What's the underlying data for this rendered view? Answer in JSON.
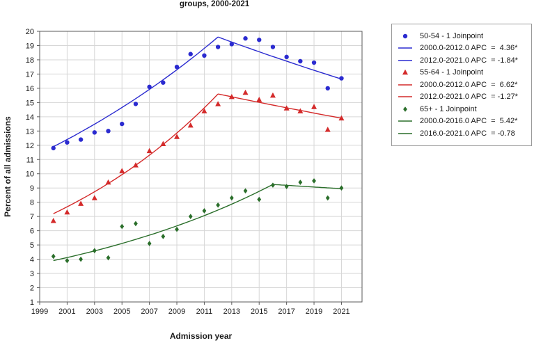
{
  "chart_data": {
    "type": "scatter",
    "title": "groups, 2000-2021",
    "xlabel": "Admission year",
    "ylabel": "Percent of all admissions",
    "xlim": [
      1999,
      2022.5
    ],
    "ylim": [
      1,
      20
    ],
    "x_ticks": [
      1999,
      2001,
      2003,
      2005,
      2007,
      2009,
      2011,
      2013,
      2015,
      2017,
      2019,
      2021
    ],
    "y_ticks": [
      1,
      2,
      3,
      4,
      5,
      6,
      7,
      8,
      9,
      10,
      11,
      12,
      13,
      14,
      15,
      16,
      17,
      18,
      19,
      20
    ],
    "grid": true,
    "legend_position": "top-right-outside",
    "colors": {
      "grid": "#d6d6d6",
      "frame": "#5a5a5a"
    },
    "years": [
      2000,
      2001,
      2002,
      2003,
      2004,
      2005,
      2006,
      2007,
      2008,
      2009,
      2010,
      2011,
      2012,
      2013,
      2014,
      2015,
      2016,
      2017,
      2018,
      2019,
      2020,
      2021
    ],
    "series": [
      {
        "name": "50-54 - 1 Joinpoint",
        "color": "#2b2bd0",
        "marker": "circle",
        "values": [
          11.8,
          12.2,
          12.4,
          12.9,
          13.0,
          13.5,
          14.9,
          16.1,
          16.4,
          17.5,
          18.4,
          18.3,
          18.9,
          19.1,
          19.5,
          19.4,
          18.9,
          18.2,
          17.9,
          17.8,
          16.0,
          16.7
        ],
        "trend_segments": [
          {
            "x0": 2000,
            "y0": 11.9,
            "x1": 2012,
            "y1": 19.6,
            "apc": "4.36*"
          },
          {
            "x0": 2012,
            "y0": 19.6,
            "x1": 2021,
            "y1": 16.65,
            "apc": "-1.84*"
          }
        ]
      },
      {
        "name": "55-64 - 1 Joinpoint",
        "color": "#d42a2a",
        "marker": "triangle",
        "values": [
          6.7,
          7.3,
          7.9,
          8.3,
          9.4,
          10.2,
          10.6,
          11.6,
          12.1,
          12.6,
          13.4,
          14.4,
          14.9,
          15.4,
          15.7,
          15.2,
          15.5,
          14.6,
          14.4,
          14.7,
          13.1,
          13.9
        ],
        "trend_segments": [
          {
            "x0": 2000,
            "y0": 7.2,
            "x1": 2012,
            "y1": 15.6,
            "apc": "6.62*"
          },
          {
            "x0": 2012,
            "y0": 15.6,
            "x1": 2021,
            "y1": 13.9,
            "apc": "-1.27*"
          }
        ]
      },
      {
        "name": "65+ - 1 Joinpoint",
        "color": "#2a6e2a",
        "marker": "diamond",
        "values": [
          4.2,
          3.9,
          4.0,
          4.6,
          4.1,
          6.3,
          6.5,
          5.1,
          5.6,
          6.1,
          7.0,
          7.4,
          7.8,
          8.3,
          8.8,
          8.2,
          9.2,
          9.1,
          9.4,
          9.5,
          8.3,
          9.0
        ],
        "trend_segments": [
          {
            "x0": 2000,
            "y0": 3.9,
            "x1": 2016,
            "y1": 9.25,
            "apc": "5.42*"
          },
          {
            "x0": 2016,
            "y0": 9.25,
            "x1": 2021,
            "y1": 8.95,
            "apc": "-0.78"
          }
        ]
      }
    ]
  },
  "legend": {
    "entries": [
      {
        "marker": "circle",
        "color": "#2b2bd0",
        "text": "50-54 - 1 Joinpoint"
      },
      {
        "marker": "line",
        "color": "#2b2bd0",
        "text": "2000.0-2012.0 APC  =  4.36*"
      },
      {
        "marker": "line",
        "color": "#2b2bd0",
        "text": "2012.0-2021.0 APC  = -1.84*"
      },
      {
        "marker": "triangle",
        "color": "#d42a2a",
        "text": "55-64 - 1 Joinpoint"
      },
      {
        "marker": "line",
        "color": "#d42a2a",
        "text": "2000.0-2012.0 APC  =  6.62*"
      },
      {
        "marker": "line",
        "color": "#d42a2a",
        "text": "2012.0-2021.0 APC  = -1.27*"
      },
      {
        "marker": "diamond",
        "color": "#2a6e2a",
        "text": "65+ - 1 Joinpoint"
      },
      {
        "marker": "line",
        "color": "#2a6e2a",
        "text": "2000.0-2016.0 APC  =  5.42*"
      },
      {
        "marker": "line",
        "color": "#2a6e2a",
        "text": "2016.0-2021.0 APC  = -0.78"
      }
    ]
  }
}
